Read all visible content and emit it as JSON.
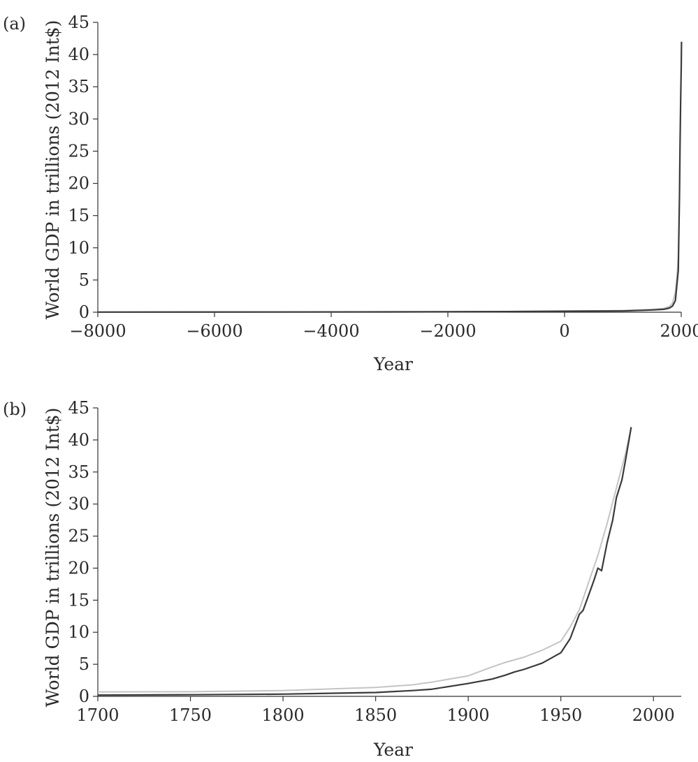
{
  "colors": {
    "dark_series": "#3a3a3a",
    "light_series": "#c4c4c4",
    "axis": "#333333"
  },
  "chart_data": [
    {
      "panel_label": "(a)",
      "type": "line",
      "xlabel": "Year",
      "ylabel": "World GDP in trillions (2012 Int$)",
      "xlim": [
        -8000,
        2000
      ],
      "ylim": [
        0,
        45
      ],
      "xticks": [
        -8000,
        -6000,
        -4000,
        -2000,
        0,
        2000
      ],
      "xtick_labels": [
        "−8000",
        "−6000",
        "−4000",
        "−2000",
        "0",
        "2000"
      ],
      "yticks": [
        0,
        5,
        10,
        15,
        20,
        25,
        30,
        35,
        40,
        45
      ],
      "ytick_labels": [
        "0",
        "5",
        "10",
        "15",
        "20",
        "25",
        "30",
        "35",
        "40",
        "45"
      ],
      "grid": false,
      "series": [
        {
          "color_key": "light_series",
          "x": [
            -8000,
            -5000,
            -3000,
            -1000,
            0,
            500,
            1000,
            1500,
            1700,
            1800,
            1850,
            1900,
            1930,
            1950,
            1960
          ],
          "y": [
            0.01,
            0.02,
            0.04,
            0.1,
            0.18,
            0.21,
            0.26,
            0.43,
            0.6,
            0.9,
            1.4,
            3.1,
            6.0,
            8.5,
            12.5
          ]
        },
        {
          "color_key": "dark_series",
          "x": [
            -8000,
            -5000,
            -3000,
            -1000,
            0,
            500,
            1000,
            1500,
            1700,
            1800,
            1850,
            1900,
            1950,
            1960,
            1970,
            1980,
            1990,
            2000,
            2005
          ],
          "y": [
            0.02,
            0.03,
            0.05,
            0.1,
            0.15,
            0.17,
            0.2,
            0.35,
            0.45,
            0.65,
            0.95,
            1.8,
            6.5,
            12.8,
            18.0,
            26.0,
            33.0,
            38.0,
            42.0
          ]
        }
      ]
    },
    {
      "panel_label": "(b)",
      "type": "line",
      "xlabel": "Year",
      "ylabel": "World GDP in trillions (2012 Int$)",
      "xlim": [
        1700,
        2015
      ],
      "ylim": [
        0,
        45
      ],
      "xticks": [
        1700,
        1750,
        1800,
        1850,
        1900,
        1950,
        2000
      ],
      "xtick_labels": [
        "1700",
        "1750",
        "1800",
        "1850",
        "1900",
        "1950",
        "2000"
      ],
      "yticks": [
        0,
        5,
        10,
        15,
        20,
        25,
        30,
        35,
        40,
        45
      ],
      "ytick_labels": [
        "0",
        "5",
        "10",
        "15",
        "20",
        "25",
        "30",
        "35",
        "40",
        "45"
      ],
      "grid": false,
      "series": [
        {
          "color_key": "light_series",
          "x": [
            1700,
            1750,
            1800,
            1820,
            1850,
            1870,
            1880,
            1900,
            1913,
            1920,
            1930,
            1940,
            1950,
            1955,
            1960,
            1965,
            1970,
            1975,
            1980,
            1985,
            1988
          ],
          "y": [
            0.7,
            0.72,
            0.9,
            1.1,
            1.4,
            1.8,
            2.2,
            3.2,
            4.6,
            5.3,
            6.1,
            7.2,
            8.6,
            10.8,
            13.5,
            17.8,
            22.0,
            27.0,
            32.5,
            38.0,
            42.0
          ]
        },
        {
          "color_key": "dark_series",
          "x": [
            1700,
            1750,
            1800,
            1820,
            1850,
            1870,
            1880,
            1900,
            1913,
            1920,
            1925,
            1930,
            1940,
            1950,
            1955,
            1960,
            1962,
            1965,
            1968,
            1970,
            1972,
            1975,
            1978,
            1980,
            1983,
            1985,
            1988
          ],
          "y": [
            0.2,
            0.25,
            0.35,
            0.45,
            0.6,
            0.9,
            1.1,
            2.0,
            2.7,
            3.3,
            3.8,
            4.2,
            5.2,
            6.8,
            9.0,
            12.8,
            13.4,
            15.8,
            18.2,
            20.0,
            19.6,
            24.0,
            27.5,
            31.0,
            33.8,
            37.0,
            42.0
          ]
        }
      ]
    }
  ]
}
